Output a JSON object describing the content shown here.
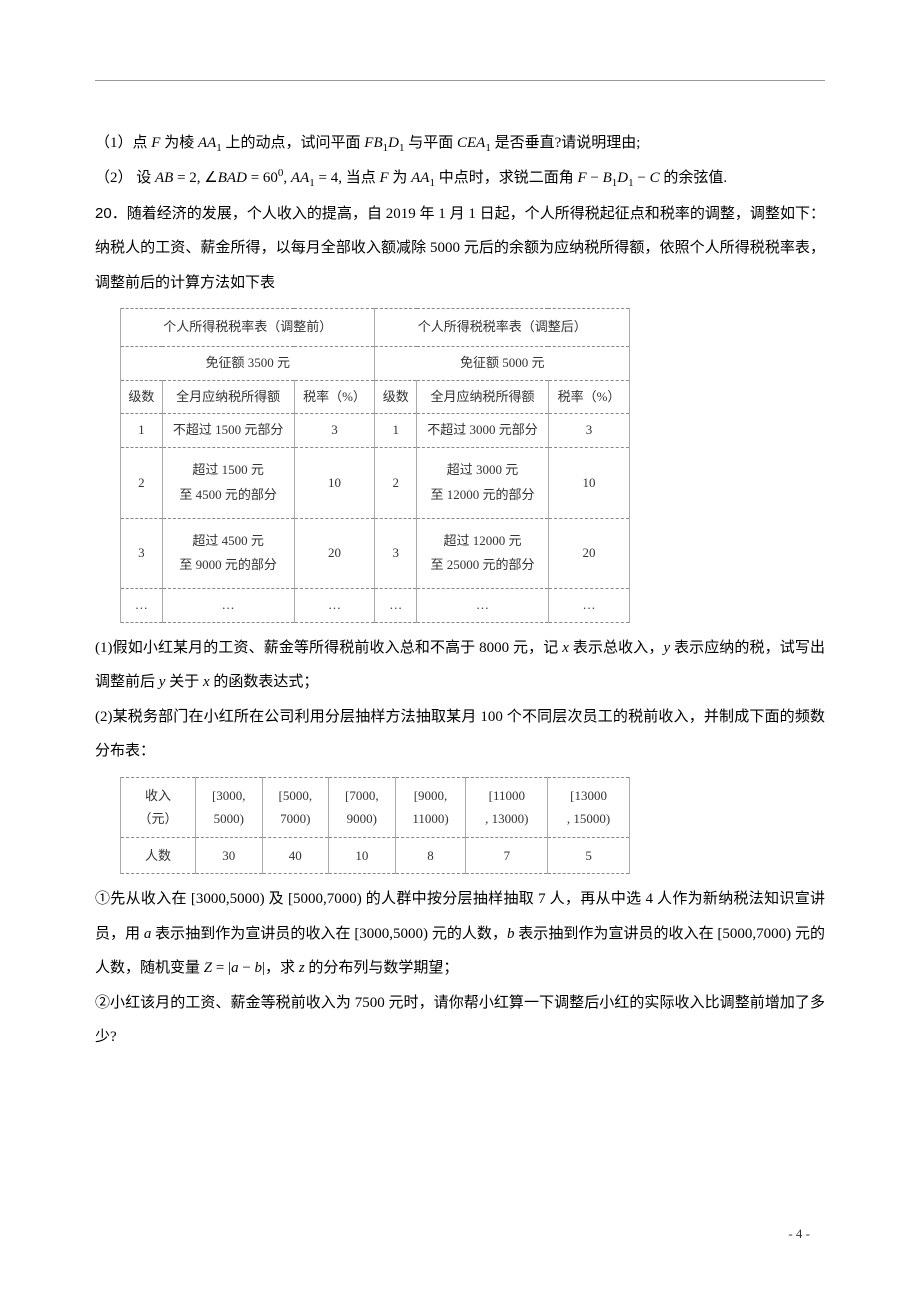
{
  "q19": {
    "part1": "（1）点 F 为棱 AA₁ 上的动点，试问平面 FB₁D₁ 与平面 CEA₁ 是否垂直?请说明理由;",
    "part2": "（2） 设 AB = 2, ∠BAD = 60°, AA₁ = 4, 当点 F 为 AA₁ 中点时，求锐二面角 F − B₁D₁ − C 的余弦值."
  },
  "q20": {
    "num": "20．",
    "intro": "随着经济的发展，个人收入的提高，自 2019 年 1 月 1 日起，个人所得税起征点和税率的调整，调整如下：纳税人的工资、薪金所得，以每月全部收入额减除 5000 元后的余额为应纳税所得额，依照个人所得税税率表，调整前后的计算方法如下表",
    "tax_table": {
      "left_title": "个人所得税税率表（调整前）",
      "right_title": "个人所得税税率表（调整后）",
      "left_exempt": "免征额 3500 元",
      "right_exempt": "免征额 5000 元",
      "col_level": "级数",
      "col_income": "全月应纳税所得额",
      "col_rate": "税率（%）",
      "rows_left": [
        {
          "lvl": "1",
          "inc": "不超过 1500 元部分",
          "rate": "3"
        },
        {
          "lvl": "2",
          "inc": "超过 1500 元\n至 4500 元的部分",
          "rate": "10"
        },
        {
          "lvl": "3",
          "inc": "超过 4500 元\n至 9000 元的部分",
          "rate": "20"
        },
        {
          "lvl": "…",
          "inc": "…",
          "rate": "…"
        }
      ],
      "rows_right": [
        {
          "lvl": "1",
          "inc": "不超过 3000 元部分",
          "rate": "3"
        },
        {
          "lvl": "2",
          "inc": "超过 3000 元\n至 12000 元的部分",
          "rate": "10"
        },
        {
          "lvl": "3",
          "inc": "超过 12000 元\n至 25000 元的部分",
          "rate": "20"
        },
        {
          "lvl": "…",
          "inc": "…",
          "rate": "…"
        }
      ]
    },
    "part1": "(1)假如小红某月的工资、薪金等所得税前收入总和不高于 8000 元，记 x 表示总收入，y 表示应纳的税，试写出调整前后 y 关于 x 的函数表达式；",
    "part2": "(2)某税务部门在小红所在公司利用分层抽样方法抽取某月 100 个不同层次员工的税前收入，并制成下面的频数分布表：",
    "freq_table": {
      "row_labels": [
        "收入（元）",
        "人数"
      ],
      "cols": [
        "[3000, 5000)",
        "[5000, 7000)",
        "[7000, 9000)",
        "[9000, 11000)",
        "[11000, 13000)",
        "[13000, 15000)"
      ],
      "counts": [
        "30",
        "40",
        "10",
        "8",
        "7",
        "5"
      ]
    },
    "sub1": "①先从收入在 [3000,5000) 及 [5000,7000) 的人群中按分层抽样抽取 7 人，再从中选 4 人作为新纳税法知识宣讲员，用 a 表示抽到作为宣讲员的收入在 [3000,5000) 元的人数，b 表示抽到作为宣讲员的收入在 [5000,7000) 元的人数，随机变量 Z = |a − b|，求 z 的分布列与数学期望；",
    "sub2": "②小红该月的工资、薪金等税前收入为 7500 元时，请你帮小红算一下调整后小红的实际收入比调整前增加了多少?"
  },
  "pagenum": "- 4 -"
}
